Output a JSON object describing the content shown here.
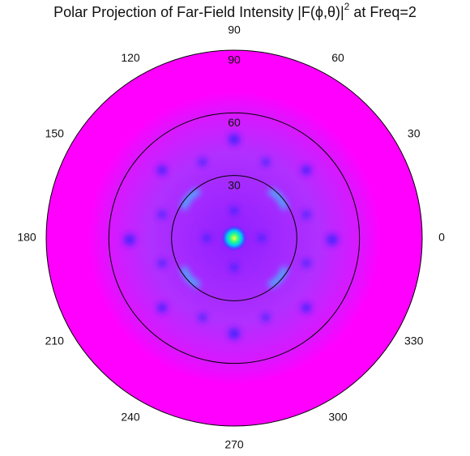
{
  "chart_data": {
    "type": "polar",
    "title": [
      "Polar Projection of Far-Field Intensity |F(ϕ,θ)|",
      "2",
      " at Freq=2"
    ],
    "rlim": [
      0,
      90
    ],
    "rticks": [
      30,
      60,
      90
    ],
    "thetaticks": [
      0,
      30,
      60,
      90,
      120,
      150,
      180,
      210,
      240,
      270,
      300,
      330
    ],
    "grid": true,
    "grid_color": "#000000",
    "background_color": "#ff00ff"
  }
}
